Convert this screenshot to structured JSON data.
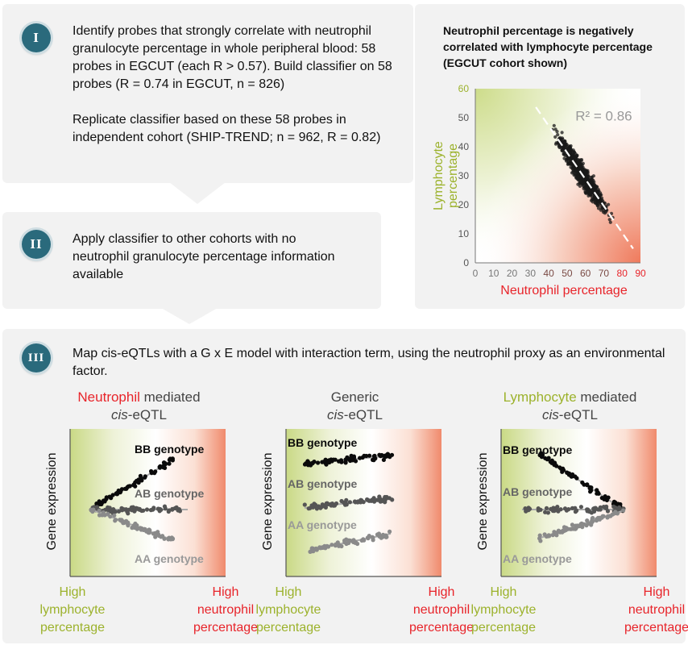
{
  "step1": {
    "badge": "I",
    "text1": "Identify probes that strongly correlate with neutrophil granulocyte percentage in whole peripheral blood: 58 probes in EGCUT (each R > 0.57). Build classifier on 58 probes (R = 0.74 in EGCUT, n = 826)",
    "text2": "Replicate classifier based on these 58 probes in independent cohort (SHIP-TREND; n = 962, R = 0.82)"
  },
  "step2": {
    "badge": "II",
    "text": "Apply classifier to other cohorts with no neutrophil granulocyte percentage information available"
  },
  "step3": {
    "badge": "III",
    "text": "Map cis-eQTLs with a G x E model with interaction term, using the neutrophil proxy as an environmental factor."
  },
  "scatter": {
    "title": "Neutrophil percentage is negatively correlated with lymphocyte percentage (EGCUT cohort shown)",
    "r2": "R² = 0.86",
    "chart_data": {
      "type": "scatter",
      "xlabel": "Neutrophil percentage",
      "ylabel": "Lymphocyte percentage",
      "xlim": [
        0,
        90
      ],
      "ylim": [
        0,
        60
      ],
      "xticks": [
        "0",
        "10",
        "20",
        "30",
        "40",
        "50",
        "60",
        "70",
        "80",
        "90"
      ],
      "yticks": [
        "0",
        "10",
        "20",
        "30",
        "40",
        "50",
        "60"
      ],
      "n": 826,
      "fit": {
        "slope": -0.92,
        "intercept": 84
      },
      "r2": 0.86
    },
    "colors": {
      "green": "#9cb22c",
      "red": "#e8242a"
    }
  },
  "mini_charts": [
    {
      "title_colored": "Neutrophil",
      "title_rest": " mediated",
      "title2_italic": "cis",
      "title2_rest": "-eQTL",
      "color": "red",
      "ylabel": "Gene expression",
      "labels": {
        "bb": "BB genotype",
        "ab": "AB genotype",
        "aa": "AA genotype"
      },
      "left_label": [
        "High",
        "lymphocyte",
        "percentage"
      ],
      "right_label": [
        "High",
        "neutrophil",
        "percentage"
      ]
    },
    {
      "title_colored": "",
      "title_rest": "Generic",
      "title2_italic": "cis",
      "title2_rest": "-eQTL",
      "color": "none",
      "ylabel": "Gene expression",
      "labels": {
        "bb": "BB genotype",
        "ab": "AB genotype",
        "aa": "AA genotype"
      },
      "left_label": [
        "High",
        "lymphocyte",
        "percentage"
      ],
      "right_label": [
        "High",
        "neutrophil",
        "percentage"
      ]
    },
    {
      "title_colored": "Lymphocyte",
      "title_rest": " mediated",
      "title2_italic": "cis",
      "title2_rest": "-eQTL",
      "color": "green",
      "ylabel": "Gene expression",
      "labels": {
        "bb": "BB genotype",
        "ab": "AB genotype",
        "aa": "AA genotype"
      },
      "left_label": [
        "High",
        "lymphocyte",
        "percentage"
      ],
      "right_label": [
        "High",
        "neutrophil",
        "percentage"
      ]
    }
  ]
}
